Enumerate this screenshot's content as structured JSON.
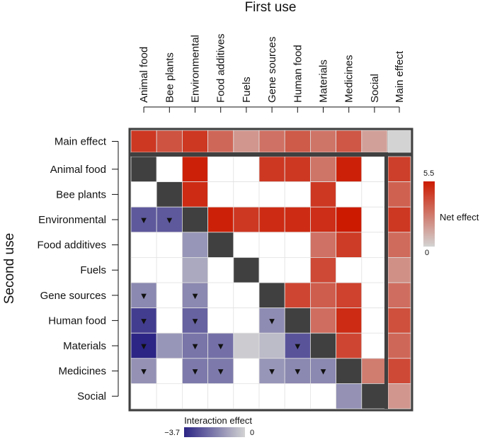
{
  "chart_data": {
    "type": "heatmap",
    "x_axis_title": "First use",
    "y_axis_title": "Second use",
    "columns": [
      "Animal food",
      "Bee plants",
      "Environmental",
      "Food additives",
      "Fuels",
      "Gene sources",
      "Human food",
      "Materials",
      "Medicines",
      "Social",
      "Main effect"
    ],
    "rows": [
      "Main effect",
      "Animal food",
      "Bee plants",
      "Environmental",
      "Food additives",
      "Fuels",
      "Gene sources",
      "Human food",
      "Materials",
      "Medicines",
      "Social"
    ],
    "main_effect_first_use": [
      4.6,
      3.8,
      4.6,
      3.2,
      1.8,
      2.9,
      3.6,
      2.8,
      3.7,
      1.5,
      null
    ],
    "main_effect_second_use": [
      4.4,
      3.4,
      4.6,
      3.1,
      2.0,
      3.0,
      3.9,
      3.2,
      4.1,
      1.8
    ],
    "matrix": [
      [
        null,
        0,
        5.3,
        0,
        0,
        4.6,
        4.6,
        2.8,
        5.3,
        0
      ],
      [
        0,
        null,
        5.0,
        0,
        0,
        0,
        0,
        4.6,
        0,
        0
      ],
      [
        -2.6,
        -2.6,
        null,
        5.3,
        4.6,
        5.0,
        5.0,
        4.9,
        5.5,
        0
      ],
      [
        0,
        0,
        -1.3,
        null,
        0,
        0,
        0,
        2.9,
        4.5,
        0
      ],
      [
        0,
        0,
        -0.9,
        0,
        null,
        0,
        0,
        4.1,
        0,
        0
      ],
      [
        -1.6,
        0,
        -1.6,
        0,
        0,
        null,
        4.2,
        3.5,
        4.3,
        0
      ],
      [
        -3.2,
        0,
        -2.4,
        0,
        0,
        -1.5,
        null,
        3.0,
        5.0,
        0
      ],
      [
        -3.7,
        -1.3,
        -2.0,
        -2.1,
        -0.15,
        -0.5,
        -2.7,
        null,
        4.2,
        0
      ],
      [
        -1.4,
        0,
        -1.9,
        -1.9,
        0,
        -1.3,
        -1.6,
        -1.6,
        null,
        2.6
      ],
      [
        0,
        0,
        0,
        0,
        0,
        0,
        0,
        0,
        -1.4,
        null
      ]
    ],
    "significant_markers": [
      [
        2,
        0
      ],
      [
        2,
        1
      ],
      [
        5,
        0
      ],
      [
        5,
        2
      ],
      [
        6,
        0
      ],
      [
        6,
        2
      ],
      [
        6,
        5
      ],
      [
        7,
        0
      ],
      [
        7,
        2
      ],
      [
        7,
        3
      ],
      [
        7,
        6
      ],
      [
        8,
        0
      ],
      [
        8,
        2
      ],
      [
        8,
        3
      ],
      [
        8,
        5
      ],
      [
        8,
        6
      ],
      [
        8,
        7
      ]
    ],
    "marker_symbol": "▼",
    "legends": {
      "net_effect": {
        "title": "Net effect",
        "max_label": "5.5",
        "min_label": "0",
        "range": [
          0,
          5.5
        ],
        "colors": [
          "#d3d3d3",
          "#cc1a00"
        ]
      },
      "interaction_effect": {
        "title": "Interaction effect",
        "min_label": "−3.7",
        "max_label": "0",
        "range": [
          -3.7,
          0
        ],
        "colors": [
          "#2c2585",
          "#d3d3d3"
        ]
      }
    },
    "colors": {
      "diagonal": "#404040",
      "zero": "#ffffff",
      "border": "#404040",
      "grid": "#e2e2e2"
    }
  }
}
